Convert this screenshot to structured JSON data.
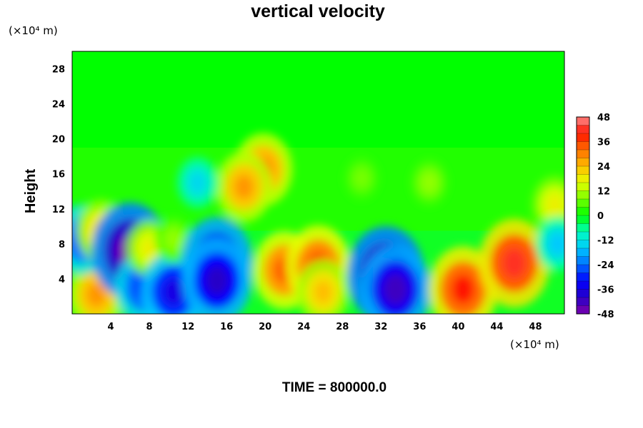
{
  "chart_data": {
    "type": "heatmap",
    "title": "vertical velocity",
    "ylabel": "Height",
    "x_unit": "(×10⁴ m)",
    "y_unit": "(×10⁴ m)",
    "footer": "TIME = 800000.0",
    "xlim": [
      0,
      51
    ],
    "ylim": [
      0,
      30
    ],
    "x_ticks": [
      4,
      8,
      12,
      16,
      20,
      24,
      28,
      32,
      36,
      40,
      44,
      48
    ],
    "y_ticks": [
      4,
      8,
      12,
      16,
      20,
      24,
      28
    ],
    "colorbar": {
      "range": [
        -48,
        48
      ],
      "ticks": [
        48,
        36,
        24,
        12,
        0,
        -12,
        -24,
        -36,
        -48
      ],
      "levels": 24
    },
    "features": [
      {
        "x": 2.5,
        "y": 2.2,
        "value": 28
      },
      {
        "x": 1.0,
        "y": 8.5,
        "value": -28
      },
      {
        "x": 3.0,
        "y": 9.5,
        "value": 22
      },
      {
        "x": 6.0,
        "y": 7.2,
        "value": -50
      },
      {
        "x": 7.5,
        "y": 3.0,
        "value": -30
      },
      {
        "x": 8.0,
        "y": 7.5,
        "value": 18
      },
      {
        "x": 10.5,
        "y": 2.5,
        "value": -36
      },
      {
        "x": 10.5,
        "y": 8.5,
        "value": 10
      },
      {
        "x": 15.0,
        "y": 6.0,
        "value": -42
      },
      {
        "x": 15.0,
        "y": 3.8,
        "value": -40
      },
      {
        "x": 19.8,
        "y": 16.5,
        "value": 30
      },
      {
        "x": 17.8,
        "y": 14.5,
        "value": 28
      },
      {
        "x": 13.0,
        "y": 15.0,
        "value": -14
      },
      {
        "x": 22.0,
        "y": 5.0,
        "value": 34
      },
      {
        "x": 25.5,
        "y": 5.5,
        "value": 36
      },
      {
        "x": 26.0,
        "y": 2.5,
        "value": 24
      },
      {
        "x": 32.5,
        "y": 4.5,
        "value": -50
      },
      {
        "x": 33.5,
        "y": 2.8,
        "value": -42
      },
      {
        "x": 40.5,
        "y": 2.8,
        "value": 40
      },
      {
        "x": 45.8,
        "y": 5.8,
        "value": 42
      },
      {
        "x": 50.0,
        "y": 12.5,
        "value": 18
      },
      {
        "x": 50.3,
        "y": 8.0,
        "value": -16
      },
      {
        "x": 30.0,
        "y": 15.5,
        "value": 8
      },
      {
        "x": 37.0,
        "y": 15.0,
        "value": 10
      }
    ],
    "legend_position": "right"
  }
}
